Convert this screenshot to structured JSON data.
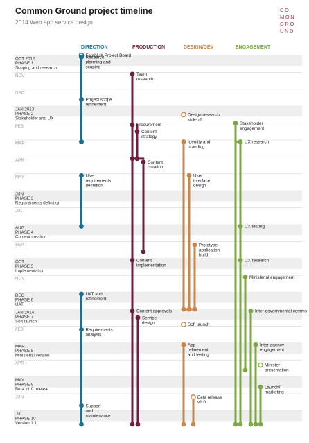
{
  "title": "Common Ground project timeline",
  "subtitle": "2014 Web app service design",
  "logo": [
    "CO",
    "MON",
    "GRO",
    "UND"
  ],
  "colors": {
    "direction": "#1a6f93",
    "production": "#6d1f41",
    "design_dev": "#c8874a",
    "engagement": "#7ba843",
    "band": "#eeeeee",
    "month_text": "#999999"
  },
  "columns": [
    {
      "key": "direction",
      "label": "DIRECTION"
    },
    {
      "key": "production",
      "label": "PRODUCTION"
    },
    {
      "key": "design_dev",
      "label": "DESIGN/DEV"
    },
    {
      "key": "engagement",
      "label": "ENGAGEMENT"
    }
  ],
  "months": [
    {
      "label": "OCT 2012",
      "phase": [
        "PHASE 1",
        "Scoping and research"
      ]
    },
    {
      "label": "NOV"
    },
    {
      "label": "DEC"
    },
    {
      "label": "JAN 2013",
      "phase": [
        "PHASE 2",
        "Stakeholder and UX"
      ]
    },
    {
      "label": "FEB"
    },
    {
      "label": "MAR"
    },
    {
      "label": "APR"
    },
    {
      "label": "MAY"
    },
    {
      "label": "JUN",
      "phase": [
        "PHASE 3",
        "Requirements definition"
      ]
    },
    {
      "label": "JUL"
    },
    {
      "label": "AUG",
      "phase": [
        "PHASE 4",
        "Content creation"
      ]
    },
    {
      "label": "SEP"
    },
    {
      "label": "OCT",
      "phase": [
        "PHASE 5",
        "Implementation"
      ]
    },
    {
      "label": "NOV"
    },
    {
      "label": "DEC",
      "phase": [
        "PHASE 6",
        "UAT"
      ]
    },
    {
      "label": "JAN 2014",
      "phase": [
        "PHASE 7",
        "Soft launch"
      ]
    },
    {
      "label": "FEB"
    },
    {
      "label": "MAR",
      "phase": [
        "PHASE 8",
        "Ministerial version"
      ]
    },
    {
      "label": "APR"
    },
    {
      "label": "MAY",
      "phase": [
        "PHASE 9",
        "Beta v1.0 release"
      ]
    },
    {
      "label": "JUN"
    },
    {
      "label": "JUL",
      "phase": [
        "PHASE 10",
        "Version 1.1"
      ]
    }
  ],
  "events": [
    {
      "col": "direction",
      "lines": [
        "Establish Project Board"
      ],
      "month": 0,
      "hollow": true
    },
    {
      "col": "direction",
      "lines": [
        "Research,",
        "planning and",
        "scoping"
      ],
      "month": 0.1
    },
    {
      "col": "direction",
      "lines": [
        "Project scope",
        "refinement"
      ],
      "month": 2.6
    },
    {
      "col": "direction",
      "lines": [
        "User",
        "requirements",
        "definition"
      ],
      "month": 7.1
    },
    {
      "col": "direction",
      "lines": [
        "UAT and",
        "refinement"
      ],
      "month": 14.1
    },
    {
      "col": "direction",
      "lines": [
        "Requirements",
        "analysis"
      ],
      "month": 16.2
    },
    {
      "col": "direction",
      "lines": [
        "Support",
        "and",
        "maintenance"
      ],
      "month": 20.7
    },
    {
      "col": "production",
      "lines": [
        "Team",
        "research"
      ],
      "month": 1.1
    },
    {
      "col": "production",
      "lines": [
        "Procurement"
      ],
      "month": 4.1
    },
    {
      "col": "production",
      "lines": [
        "Content",
        "strategy"
      ],
      "month": 4.5
    },
    {
      "col": "production",
      "lines": [
        "Content",
        "creation"
      ],
      "month": 6.3
    },
    {
      "col": "production",
      "lines": [
        "Content",
        "implementation"
      ],
      "month": 12.1
    },
    {
      "col": "production",
      "lines": [
        "Content approvals"
      ],
      "month": 15.1
    },
    {
      "col": "production",
      "lines": [
        "Service",
        "design"
      ],
      "month": 15.5
    },
    {
      "col": "design_dev",
      "lines": [
        "Design research",
        "kick-off"
      ],
      "month": 3.5,
      "hollow": true
    },
    {
      "col": "design_dev",
      "lines": [
        "Identity and",
        "branding"
      ],
      "month": 5.1
    },
    {
      "col": "design_dev",
      "lines": [
        "User",
        "interface",
        "design"
      ],
      "month": 7.1
    },
    {
      "col": "design_dev",
      "lines": [
        "Prototype",
        "application",
        "build"
      ],
      "month": 11.2
    },
    {
      "col": "design_dev",
      "lines": [
        "Soft launch"
      ],
      "month": 15.9,
      "hollow": true
    },
    {
      "col": "design_dev",
      "lines": [
        "App",
        "refinement",
        "and testing"
      ],
      "month": 17.1
    },
    {
      "col": "design_dev",
      "lines": [
        "Beta release",
        "v1.0"
      ],
      "month": 20.2,
      "hollow": true
    },
    {
      "col": "engagement",
      "lines": [
        "Stakeholder",
        "engagement"
      ],
      "month": 4.0
    },
    {
      "col": "engagement",
      "lines": [
        "UX research"
      ],
      "month": 5.1
    },
    {
      "col": "engagement",
      "lines": [
        "UX testing"
      ],
      "month": 10.1
    },
    {
      "col": "engagement",
      "lines": [
        "UX research"
      ],
      "month": 12.1
    },
    {
      "col": "engagement",
      "lines": [
        "Ministerial engagement"
      ],
      "month": 13.1
    },
    {
      "col": "engagement",
      "lines": [
        "Inter-governmental comms"
      ],
      "month": 15.1
    },
    {
      "col": "engagement",
      "lines": [
        "Inter-agency",
        "engagement"
      ],
      "month": 17.1
    },
    {
      "col": "engagement",
      "lines": [
        "Minister",
        "presentation"
      ],
      "month": 18.3,
      "hollow": true
    },
    {
      "col": "engagement",
      "lines": [
        "Launch/",
        "marketing"
      ],
      "month": 19.6
    }
  ]
}
